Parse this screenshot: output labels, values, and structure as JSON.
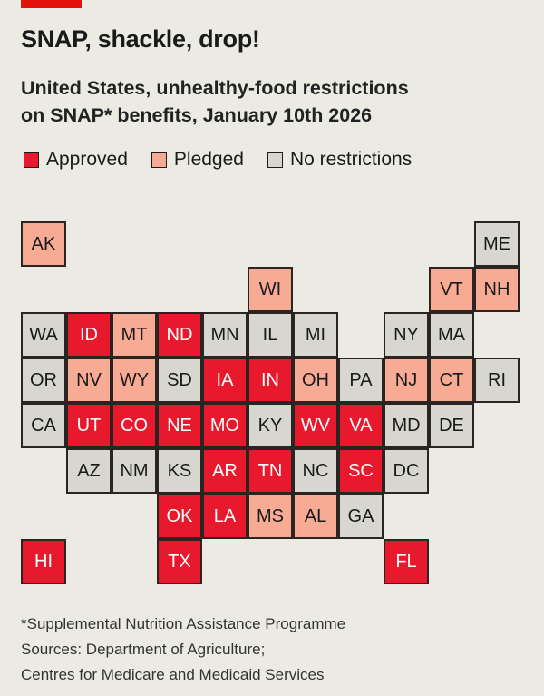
{
  "title": "SNAP, shackle, drop!",
  "subtitle_line1": "United States, unhealthy-food restrictions",
  "subtitle_line2": "on SNAP* benefits, January 10th 2026",
  "colors": {
    "approved": "#e8192c",
    "pledged": "#f8ab94",
    "none": "#d7d7d0",
    "accent": "#e3120b"
  },
  "legend": [
    {
      "key": "approved",
      "label": "Approved"
    },
    {
      "key": "pledged",
      "label": "Pledged"
    },
    {
      "key": "none",
      "label": "No restrictions"
    }
  ],
  "chart_data": {
    "type": "heatmap",
    "description_type": "tile grid map",
    "tiles": [
      {
        "state": "AK",
        "row": 0,
        "col": 0,
        "status": "pledged"
      },
      {
        "state": "ME",
        "row": 0,
        "col": 10,
        "status": "none"
      },
      {
        "state": "WI",
        "row": 1,
        "col": 5,
        "status": "pledged"
      },
      {
        "state": "VT",
        "row": 1,
        "col": 9,
        "status": "pledged"
      },
      {
        "state": "NH",
        "row": 1,
        "col": 10,
        "status": "pledged"
      },
      {
        "state": "WA",
        "row": 2,
        "col": 0,
        "status": "none"
      },
      {
        "state": "ID",
        "row": 2,
        "col": 1,
        "status": "approved"
      },
      {
        "state": "MT",
        "row": 2,
        "col": 2,
        "status": "pledged"
      },
      {
        "state": "ND",
        "row": 2,
        "col": 3,
        "status": "approved"
      },
      {
        "state": "MN",
        "row": 2,
        "col": 4,
        "status": "none"
      },
      {
        "state": "IL",
        "row": 2,
        "col": 5,
        "status": "none"
      },
      {
        "state": "MI",
        "row": 2,
        "col": 6,
        "status": "none"
      },
      {
        "state": "NY",
        "row": 2,
        "col": 8,
        "status": "none"
      },
      {
        "state": "MA",
        "row": 2,
        "col": 9,
        "status": "none"
      },
      {
        "state": "OR",
        "row": 3,
        "col": 0,
        "status": "none"
      },
      {
        "state": "NV",
        "row": 3,
        "col": 1,
        "status": "pledged"
      },
      {
        "state": "WY",
        "row": 3,
        "col": 2,
        "status": "pledged"
      },
      {
        "state": "SD",
        "row": 3,
        "col": 3,
        "status": "none"
      },
      {
        "state": "IA",
        "row": 3,
        "col": 4,
        "status": "approved"
      },
      {
        "state": "IN",
        "row": 3,
        "col": 5,
        "status": "approved"
      },
      {
        "state": "OH",
        "row": 3,
        "col": 6,
        "status": "pledged"
      },
      {
        "state": "PA",
        "row": 3,
        "col": 7,
        "status": "none"
      },
      {
        "state": "NJ",
        "row": 3,
        "col": 8,
        "status": "pledged"
      },
      {
        "state": "CT",
        "row": 3,
        "col": 9,
        "status": "pledged"
      },
      {
        "state": "RI",
        "row": 3,
        "col": 10,
        "status": "none"
      },
      {
        "state": "CA",
        "row": 4,
        "col": 0,
        "status": "none"
      },
      {
        "state": "UT",
        "row": 4,
        "col": 1,
        "status": "approved"
      },
      {
        "state": "CO",
        "row": 4,
        "col": 2,
        "status": "approved"
      },
      {
        "state": "NE",
        "row": 4,
        "col": 3,
        "status": "approved"
      },
      {
        "state": "MO",
        "row": 4,
        "col": 4,
        "status": "approved"
      },
      {
        "state": "KY",
        "row": 4,
        "col": 5,
        "status": "none"
      },
      {
        "state": "WV",
        "row": 4,
        "col": 6,
        "status": "approved"
      },
      {
        "state": "VA",
        "row": 4,
        "col": 7,
        "status": "approved"
      },
      {
        "state": "MD",
        "row": 4,
        "col": 8,
        "status": "none"
      },
      {
        "state": "DE",
        "row": 4,
        "col": 9,
        "status": "none"
      },
      {
        "state": "AZ",
        "row": 5,
        "col": 1,
        "status": "none"
      },
      {
        "state": "NM",
        "row": 5,
        "col": 2,
        "status": "none"
      },
      {
        "state": "KS",
        "row": 5,
        "col": 3,
        "status": "none"
      },
      {
        "state": "AR",
        "row": 5,
        "col": 4,
        "status": "approved"
      },
      {
        "state": "TN",
        "row": 5,
        "col": 5,
        "status": "approved"
      },
      {
        "state": "NC",
        "row": 5,
        "col": 6,
        "status": "none"
      },
      {
        "state": "SC",
        "row": 5,
        "col": 7,
        "status": "approved"
      },
      {
        "state": "DC",
        "row": 5,
        "col": 8,
        "status": "none"
      },
      {
        "state": "OK",
        "row": 6,
        "col": 3,
        "status": "approved"
      },
      {
        "state": "LA",
        "row": 6,
        "col": 4,
        "status": "approved"
      },
      {
        "state": "MS",
        "row": 6,
        "col": 5,
        "status": "pledged"
      },
      {
        "state": "AL",
        "row": 6,
        "col": 6,
        "status": "pledged"
      },
      {
        "state": "GA",
        "row": 6,
        "col": 7,
        "status": "none"
      },
      {
        "state": "HI",
        "row": 7,
        "col": 0,
        "status": "approved"
      },
      {
        "state": "TX",
        "row": 7,
        "col": 3,
        "status": "approved"
      },
      {
        "state": "FL",
        "row": 7,
        "col": 8,
        "status": "approved"
      }
    ]
  },
  "notes": {
    "footnote": "*Supplemental Nutrition Assistance Programme",
    "sources1": "Sources: Department of Agriculture;",
    "sources2": "Centres for Medicare and Medicaid Services"
  }
}
